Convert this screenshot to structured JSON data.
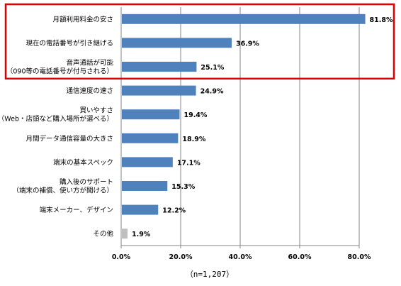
{
  "chart_data": {
    "type": "bar",
    "orientation": "horizontal",
    "categories": [
      [
        "月額利用料金の安さ"
      ],
      [
        "現在の電話番号が引き継げる"
      ],
      [
        "音声通話が可能",
        "（090等の電話番号が付与される）"
      ],
      [
        "通信速度の速さ"
      ],
      [
        "買いやすさ",
        "（Web・店頭など購入場所が選べる）"
      ],
      [
        "月間データ通信容量の大きさ"
      ],
      [
        "端末の基本スペック"
      ],
      [
        "購入後のサポート",
        "（端末の補償、使い方が聞ける）"
      ],
      [
        "端末メーカー、デザイン"
      ],
      [
        "その他"
      ]
    ],
    "values": [
      81.8,
      36.9,
      25.1,
      24.9,
      19.4,
      18.9,
      17.1,
      15.3,
      12.2,
      1.9
    ],
    "value_labels": [
      "81.8%",
      "36.9%",
      "25.1%",
      "24.9%",
      "19.4%",
      "18.9%",
      "17.1%",
      "15.3%",
      "12.2%",
      "1.9%"
    ],
    "xlim": [
      0,
      80
    ],
    "xticks": [
      0,
      20,
      40,
      60,
      80
    ],
    "xtick_labels": [
      "0.0%",
      "20.0%",
      "40.0%",
      "60.0%",
      "80.0%"
    ],
    "grid": "vertical",
    "bar_color": "#4f81bd",
    "other_bar_color": "#bfbfbf",
    "highlight": {
      "rows": [
        0,
        1,
        2
      ],
      "color": "#e00000"
    },
    "note": "（n=1,207）"
  }
}
